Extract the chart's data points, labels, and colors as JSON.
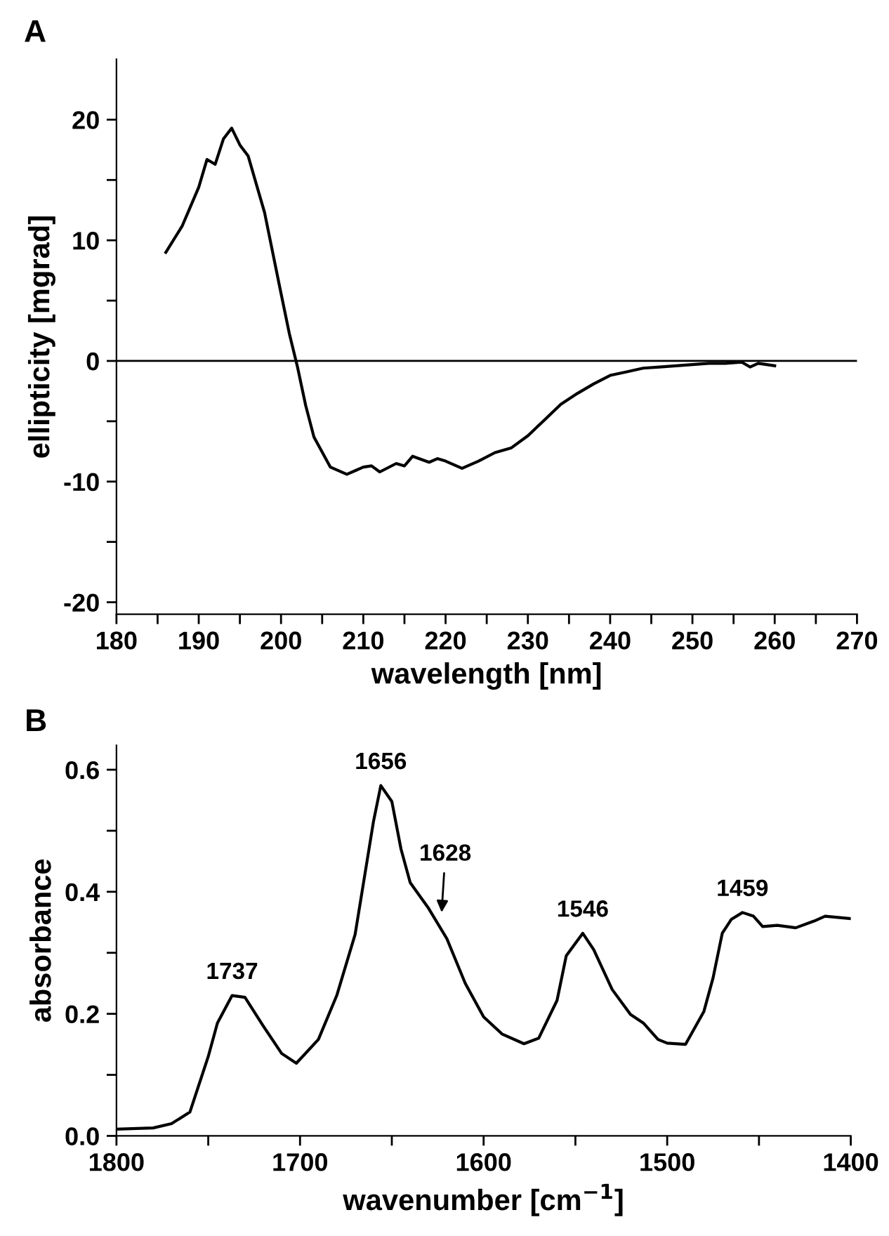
{
  "chart_data": [
    {
      "type": "line",
      "title": "A",
      "xlabel": "wavelength [nm]",
      "ylabel": "ellipticity [mgrad]",
      "x": [
        186,
        188,
        190,
        191,
        192,
        193,
        194,
        195,
        196,
        198,
        200,
        201,
        202,
        203,
        204,
        206,
        208,
        210,
        211,
        212,
        214,
        215,
        216,
        218,
        219,
        220,
        222,
        224,
        226,
        228,
        230,
        232,
        234,
        236,
        238,
        240,
        242,
        244,
        246,
        248,
        250,
        252,
        254,
        256,
        257,
        258,
        260
      ],
      "series": [
        {
          "color": "#000000",
          "values": [
            9.0,
            11.2,
            14.4,
            16.7,
            16.3,
            18.4,
            19.3,
            17.9,
            17.0,
            12.3,
            5.6,
            2.3,
            -0.5,
            -3.7,
            -6.3,
            -8.8,
            -9.4,
            -8.8,
            -8.7,
            -9.2,
            -8.5,
            -8.7,
            -7.9,
            -8.4,
            -8.1,
            -8.3,
            -8.9,
            -8.3,
            -7.6,
            -7.2,
            -6.2,
            -4.9,
            -3.6,
            -2.7,
            -1.9,
            -1.2,
            -0.9,
            -0.6,
            -0.5,
            -0.4,
            -0.3,
            -0.2,
            -0.2,
            -0.1,
            -0.5,
            -0.2,
            -0.4
          ]
        }
      ],
      "xlim": [
        180,
        270
      ],
      "ylim": [
        -21,
        25
      ],
      "xticks": [
        180,
        {
          "value": 185,
          "label": null
        },
        190,
        {
          "value": 195,
          "label": null
        },
        200,
        {
          "value": 205,
          "label": null
        },
        210,
        {
          "value": 215,
          "label": null
        },
        220,
        {
          "value": 225,
          "label": null
        },
        230,
        {
          "value": 235,
          "label": null
        },
        240,
        {
          "value": 245,
          "label": null
        },
        250,
        {
          "value": 255,
          "label": null
        },
        260,
        {
          "value": 265,
          "label": null
        },
        270
      ],
      "yticks": [
        -20,
        {
          "value": -15,
          "label": null
        },
        -10,
        {
          "value": -5,
          "label": null
        },
        0,
        {
          "value": 5,
          "label": null
        },
        10,
        {
          "value": 15,
          "label": null
        },
        20
      ],
      "ref_lines": [
        {
          "axis": "y",
          "value": 0,
          "label": null,
          "color": "#000000"
        }
      ],
      "grid": false,
      "legend": false,
      "marker": "none",
      "line_style": "solid"
    },
    {
      "type": "line",
      "title": "B",
      "xlabel": "wavenumber [cm$^{−1}$]",
      "ylabel": "absorbance",
      "x": [
        1800,
        1780,
        1770,
        1760,
        1750,
        1745,
        1737,
        1730,
        1720,
        1710,
        1702,
        1690,
        1680,
        1670,
        1660,
        1656,
        1650,
        1645,
        1640,
        1630,
        1620,
        1610,
        1600,
        1590,
        1578,
        1570,
        1560,
        1555,
        1546,
        1540,
        1530,
        1520,
        1513,
        1505,
        1500,
        1490,
        1480,
        1475,
        1470,
        1465,
        1459,
        1453,
        1448,
        1440,
        1430,
        1420,
        1414,
        1400
      ],
      "series": [
        {
          "color": "#000000",
          "values": [
            0.011,
            0.013,
            0.02,
            0.039,
            0.13,
            0.185,
            0.23,
            0.227,
            0.18,
            0.135,
            0.119,
            0.158,
            0.23,
            0.33,
            0.515,
            0.574,
            0.548,
            0.47,
            0.415,
            0.373,
            0.323,
            0.25,
            0.195,
            0.167,
            0.151,
            0.16,
            0.222,
            0.295,
            0.332,
            0.305,
            0.24,
            0.199,
            0.185,
            0.158,
            0.152,
            0.15,
            0.204,
            0.259,
            0.332,
            0.355,
            0.366,
            0.36,
            0.343,
            0.345,
            0.341,
            0.352,
            0.36,
            0.356
          ]
        }
      ],
      "xlim": [
        1800,
        1400
      ],
      "ylim": [
        0,
        0.64
      ],
      "xticks": [
        1800,
        {
          "value": 1750,
          "label": null
        },
        1700,
        {
          "value": 1650,
          "label": null
        },
        1600,
        {
          "value": 1550,
          "label": null
        },
        1500,
        {
          "value": 1450,
          "label": null
        },
        1400
      ],
      "yticks": [
        {
          "value": 0,
          "label": "0.0"
        },
        {
          "value": 0.1,
          "label": null
        },
        0.2,
        {
          "value": 0.3,
          "label": null
        },
        0.4,
        {
          "value": 0.5,
          "label": null
        },
        0.6
      ],
      "annotations": [
        {
          "text": "1737",
          "x": 1737,
          "y": 0.23
        },
        {
          "text": "1656",
          "x": 1656,
          "y": 0.574
        },
        {
          "text": "1628",
          "x": 1623,
          "y": 0.36
        },
        {
          "text": "1546",
          "x": 1546,
          "y": 0.332
        },
        {
          "text": "1459",
          "x": 1459,
          "y": 0.366
        }
      ],
      "grid": false,
      "legend": false,
      "marker": "none",
      "line_style": "solid"
    }
  ]
}
